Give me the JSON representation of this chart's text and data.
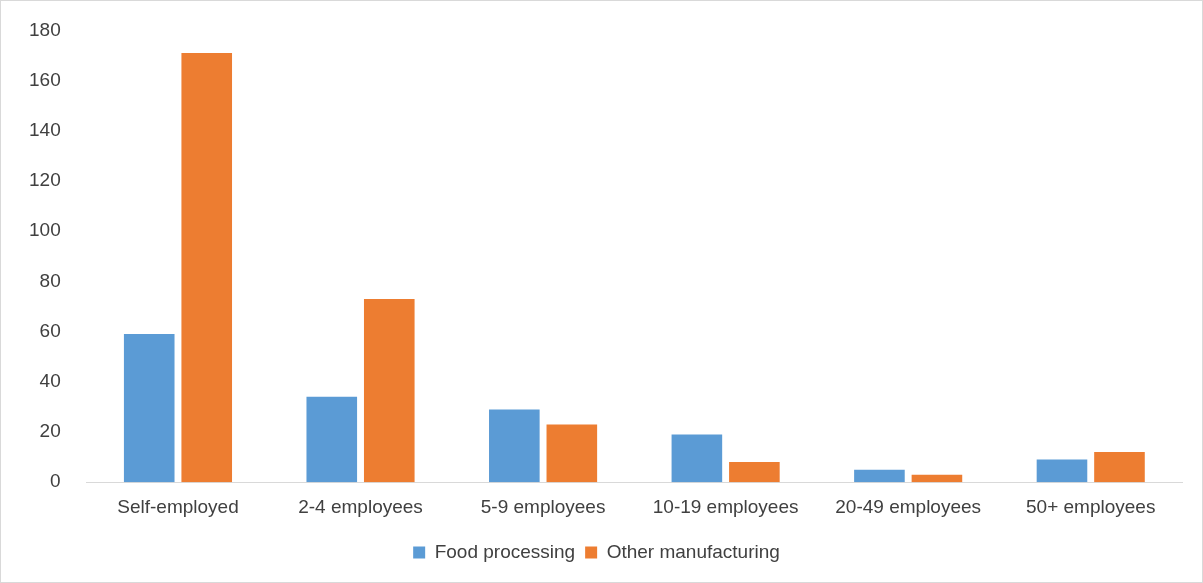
{
  "chart_data": {
    "type": "bar",
    "categories": [
      "Self-employed",
      "2-4 employees",
      "5-9 employees",
      "10-19 employees",
      "20-49 employees",
      "50+ employees"
    ],
    "series": [
      {
        "name": "Food processing",
        "color": "#5b9bd5",
        "values": [
          59,
          34,
          29,
          19,
          5,
          9
        ]
      },
      {
        "name": "Other manufacturing",
        "color": "#ed7d31",
        "values": [
          171,
          73,
          23,
          8,
          3,
          12
        ]
      }
    ],
    "ylim": [
      0,
      180
    ],
    "yticks": [
      0,
      20,
      40,
      60,
      80,
      100,
      120,
      140,
      160,
      180
    ],
    "grid": false,
    "legend": "bottom"
  }
}
